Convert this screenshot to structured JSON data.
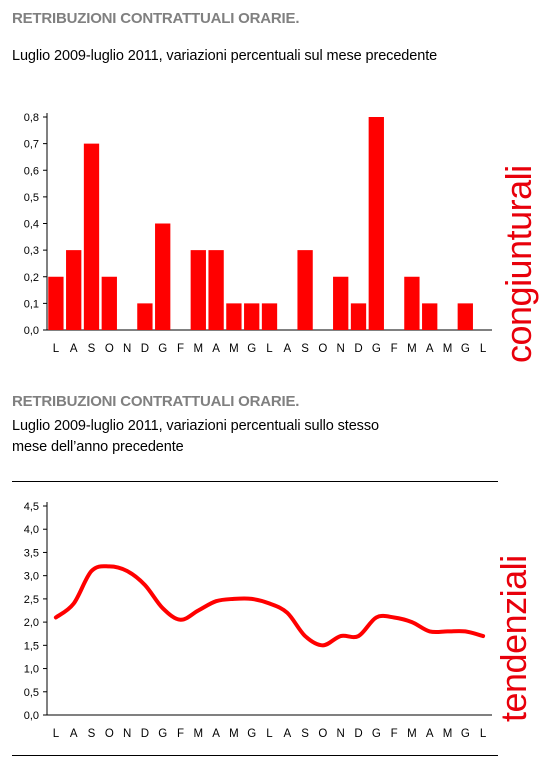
{
  "colors": {
    "accent": "#ff0000",
    "title_gray": "#808080"
  },
  "section1": {
    "title": "RETRIBUZIONI CONTRATTUALI ORARIE",
    "title_suffix": ".",
    "subtitle": "Luglio 2009-luglio 2011, variazioni percentuali sul mese precedente",
    "side_label": "congiunturali"
  },
  "section2": {
    "title": "RETRIBUZIONI CONTRATTUALI ORARIE.",
    "subtitle_line1": "Luglio 2009-luglio 2011, variazioni percentuali sullo stesso",
    "subtitle_line2": "mese dell’anno precedente",
    "side_label": "tendenziali"
  },
  "chart_data": [
    {
      "type": "bar",
      "categories": [
        "L",
        "A",
        "S",
        "O",
        "N",
        "D",
        "G",
        "F",
        "M",
        "A",
        "M",
        "G",
        "L",
        "A",
        "S",
        "O",
        "N",
        "D",
        "G",
        "F",
        "M",
        "A",
        "M",
        "G",
        "L"
      ],
      "values": [
        0.2,
        0.3,
        0.7,
        0.2,
        0,
        0.1,
        0.4,
        0,
        0.3,
        0.3,
        0.1,
        0.1,
        0.1,
        0,
        0.3,
        0,
        0.2,
        0.1,
        0.8,
        0,
        0.2,
        0.1,
        0,
        0.1,
        0
      ],
      "yticks": [
        "0,0",
        "0,1",
        "0,2",
        "0,3",
        "0,4",
        "0,5",
        "0,6",
        "0,7",
        "0,8"
      ],
      "ylim": [
        0,
        0.8
      ],
      "color": "#ff0000"
    },
    {
      "type": "line",
      "categories": [
        "L",
        "A",
        "S",
        "O",
        "N",
        "D",
        "G",
        "F",
        "M",
        "A",
        "M",
        "G",
        "L",
        "A",
        "S",
        "O",
        "N",
        "D",
        "G",
        "F",
        "M",
        "A",
        "M",
        "G",
        "L"
      ],
      "values": [
        2.1,
        2.4,
        3.1,
        3.2,
        3.1,
        2.8,
        2.3,
        2.05,
        2.25,
        2.45,
        2.5,
        2.5,
        2.4,
        2.2,
        1.7,
        1.5,
        1.7,
        1.7,
        2.1,
        2.1,
        2.0,
        1.8,
        1.8,
        1.8,
        1.7
      ],
      "yticks": [
        "0,0",
        "0,5",
        "1,0",
        "1,5",
        "2,0",
        "2,5",
        "3,0",
        "3,5",
        "4,0",
        "4,5"
      ],
      "ylim": [
        0,
        4.5
      ],
      "color": "#ff0000"
    }
  ]
}
